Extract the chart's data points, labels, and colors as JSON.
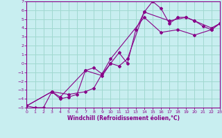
{
  "xlabel": "Windchill (Refroidissement éolien,°C)",
  "ylabel": "",
  "bg_color": "#c8eef0",
  "grid_color": "#a0d8d0",
  "line_color": "#880088",
  "xlim": [
    0,
    23
  ],
  "ylim": [
    -5,
    7
  ],
  "xticks": [
    0,
    1,
    2,
    3,
    4,
    5,
    6,
    7,
    8,
    9,
    10,
    11,
    12,
    13,
    14,
    15,
    16,
    17,
    18,
    19,
    20,
    21,
    22,
    23
  ],
  "yticks": [
    -5,
    -4,
    -3,
    -2,
    -1,
    0,
    1,
    2,
    3,
    4,
    5,
    6,
    7
  ],
  "series": [
    {
      "x": [
        0,
        1,
        2,
        3,
        4,
        5,
        6,
        7,
        8,
        9,
        10,
        11,
        12,
        13,
        14,
        15,
        16,
        17,
        18,
        19,
        20,
        21,
        22,
        23
      ],
      "y": [
        -4.8,
        -5.0,
        -5.0,
        -3.2,
        -4.0,
        -3.8,
        -3.5,
        -0.8,
        -0.5,
        -1.2,
        0.0,
        1.2,
        0.0,
        3.8,
        5.8,
        7.0,
        6.2,
        4.5,
        5.2,
        5.2,
        4.8,
        4.2,
        3.8,
        4.5
      ],
      "marker": "D",
      "markersize": 2.0
    },
    {
      "x": [
        0,
        3,
        5,
        7,
        8,
        10,
        14,
        16,
        18,
        20,
        22,
        23
      ],
      "y": [
        -4.8,
        -3.2,
        -3.5,
        -3.2,
        -2.8,
        0.5,
        5.2,
        3.5,
        3.8,
        3.2,
        3.8,
        4.5
      ],
      "marker": "D",
      "markersize": 2.0
    },
    {
      "x": [
        0,
        3,
        4,
        7,
        9,
        10,
        11,
        12,
        14,
        17,
        19,
        20,
        22,
        23
      ],
      "y": [
        -4.8,
        -3.2,
        -3.8,
        -0.8,
        -1.4,
        0.0,
        -0.3,
        0.5,
        5.8,
        4.8,
        5.2,
        4.8,
        4.0,
        4.5
      ],
      "marker": "D",
      "markersize": 2.0
    }
  ]
}
